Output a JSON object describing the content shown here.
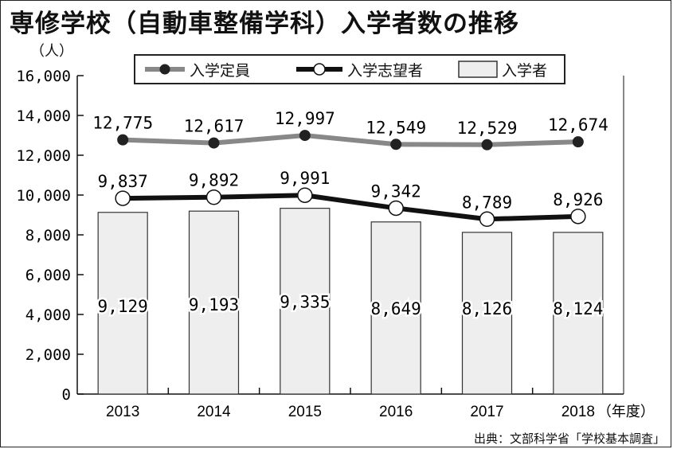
{
  "title": "専修学校（自動車整備学科）入学者数の推移",
  "y_unit_label": "（人）",
  "x_unit_label": "（年度）",
  "source": "出典：文部科学省「学校基本調査」",
  "legend": {
    "capacity": "入学定員",
    "applicants": "入学志望者",
    "enrolled": "入学者"
  },
  "colors": {
    "capacity_line": "#888888",
    "capacity_marker": "#222222",
    "applicants_line": "#111111",
    "applicants_marker_fill": "#ffffff",
    "bar_fill": "#eeeeee",
    "bar_stroke": "#333333"
  },
  "chart_data": {
    "type": "bar",
    "categories": [
      "2013",
      "2014",
      "2015",
      "2016",
      "2017",
      "2018"
    ],
    "ylim": [
      0,
      16000
    ],
    "yticks": [
      "0",
      "2,000",
      "4,000",
      "6,000",
      "8,000",
      "10,000",
      "12,000",
      "14,000",
      "16,000"
    ],
    "grid": false,
    "legend_position": "top",
    "bars": {
      "name": "入学者",
      "values": [
        9129,
        9193,
        9335,
        8649,
        8126,
        8124
      ],
      "labels": [
        "9,129",
        "9,193",
        "9,335",
        "8,649",
        "8,126",
        "8,124"
      ]
    },
    "lines": [
      {
        "name": "入学定員",
        "values": [
          12775,
          12617,
          12997,
          12549,
          12529,
          12674
        ],
        "labels": [
          "12,775",
          "12,617",
          "12,997",
          "12,549",
          "12,529",
          "12,674"
        ]
      },
      {
        "name": "入学志望者",
        "values": [
          9837,
          9892,
          9991,
          9342,
          8789,
          8926
        ],
        "labels": [
          "9,837",
          "9,892",
          "9,991",
          "9,342",
          "8,789",
          "8,926"
        ]
      }
    ]
  }
}
